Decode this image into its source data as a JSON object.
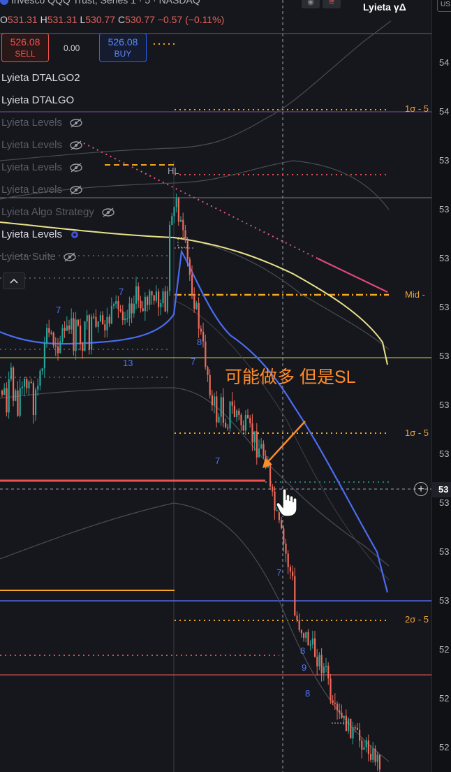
{
  "header": {
    "title": "Invesco QQQ Trust, Series 1 · 5 · NASDAQ",
    "brand": "Lyieta γΔ",
    "ohlc": {
      "o_label": "O",
      "o": "531.31",
      "h_label": "H",
      "h": "531.31",
      "l_label": "L",
      "l": "530.77",
      "c_label": "C",
      "c": "530.77",
      "change": "−0.57 (−0.11%)"
    }
  },
  "trade": {
    "sell_price": "526.08",
    "sell_label": "SELL",
    "spread": "0.00",
    "buy_price": "526.08",
    "buy_label": "BUY"
  },
  "indicators": [
    {
      "label": "Lyieta DTALGO2",
      "hidden": false
    },
    {
      "label": "Lyieta DTALGO",
      "hidden": false
    },
    {
      "label": "Lyieta Levels",
      "hidden": true
    },
    {
      "label": "Lyieta Levels",
      "hidden": true
    },
    {
      "label": "Lyieta Levels",
      "hidden": true
    },
    {
      "label": "Lyieta Levels",
      "hidden": true
    },
    {
      "label": "Lyieta Algo Strategy",
      "hidden": true
    },
    {
      "label": "Lyieta Levels",
      "hidden": false
    },
    {
      "label": "Lyieta Suite",
      "hidden": true
    }
  ],
  "band_labels": {
    "upper_1s": "1σ - 5",
    "mid": "Mid -",
    "lower_1s": "1σ - 5",
    "lower_2s": "2σ - 5"
  },
  "candle_markers": [
    "7",
    "7",
    "13",
    "7",
    "8",
    "7",
    "7",
    "8",
    "9",
    "8",
    "HL"
  ],
  "annotation": "可能做多 但是SL",
  "price_scale": {
    "top_badge": "US",
    "labels": [
      "54",
      "54",
      "53",
      "53",
      "53",
      "53",
      "53",
      "53",
      "53",
      "53",
      "53",
      "53",
      "52",
      "52",
      "52"
    ],
    "highlight": "53"
  },
  "crosshair_button": "+"
}
